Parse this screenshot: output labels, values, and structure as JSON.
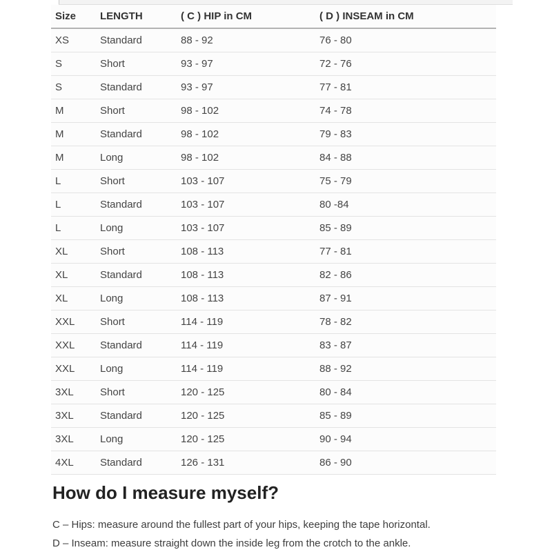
{
  "size_chart": {
    "headers": [
      "Size",
      "LENGTH",
      "( C ) HIP in CM",
      "( D ) INSEAM in CM"
    ],
    "column_keys": [
      "size",
      "length",
      "hip",
      "inseam"
    ],
    "rows": [
      [
        "XS",
        "Standard",
        "88 - 92",
        "76 - 80"
      ],
      [
        "S",
        "Short",
        "93 - 97",
        "72 - 76"
      ],
      [
        "S",
        "Standard",
        "93 - 97",
        "77 - 81"
      ],
      [
        "M",
        "Short",
        "98 - 102",
        "74 - 78"
      ],
      [
        "M",
        "Standard",
        "98 - 102",
        "79 - 83"
      ],
      [
        "M",
        "Long",
        "98 - 102",
        "84 - 88"
      ],
      [
        "L",
        "Short",
        "103 - 107",
        "75 - 79"
      ],
      [
        "L",
        "Standard",
        "103 - 107",
        "80 -84"
      ],
      [
        "L",
        "Long",
        "103 - 107",
        "85 - 89"
      ],
      [
        "XL",
        "Short",
        "108 - 113",
        "77 - 81"
      ],
      [
        "XL",
        "Standard",
        "108 - 113",
        "82 - 86"
      ],
      [
        "XL",
        "Long",
        "108 - 113",
        "87 - 91"
      ],
      [
        "XXL",
        "Short",
        "114 - 119",
        "78 - 82"
      ],
      [
        "XXL",
        "Standard",
        "114 - 119",
        "83 - 87"
      ],
      [
        "XXL",
        "Long",
        "114 - 119",
        "88 - 92"
      ],
      [
        "3XL",
        "Short",
        "120 - 125",
        "80 - 84"
      ],
      [
        "3XL",
        "Standard",
        "120 - 125",
        "85 - 89"
      ],
      [
        "3XL",
        "Long",
        "120 - 125",
        "90 - 94"
      ],
      [
        "4XL",
        "Standard",
        "126 - 131",
        "86 - 90"
      ]
    ]
  },
  "measure_section": {
    "heading": "How do I measure myself?",
    "instructions": [
      "C – Hips: measure around the fullest part of your hips, keeping the tape horizontal.",
      "D – Inseam: measure straight down the inside leg from the crotch to the ankle."
    ]
  },
  "colors": {
    "header_rule": "#b3b3b3",
    "row_divider": "#e3e3e3",
    "header_text": "#333333",
    "body_text": "#444444",
    "heading_text": "#222222",
    "table_background": "#fcfcfc"
  }
}
